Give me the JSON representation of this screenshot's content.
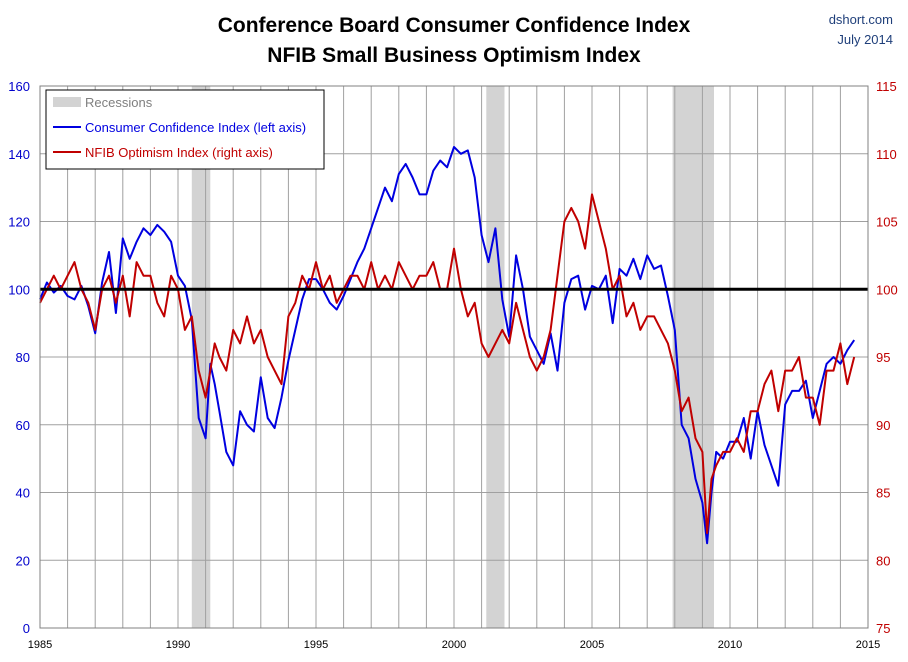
{
  "header": {
    "title_line1": "Conference Board Consumer Confidence Index",
    "title_line2": "NFIB Small Business Optimism Index",
    "source": "dshort.com",
    "date": "July 2014"
  },
  "colors": {
    "consumer": "#0000e0",
    "nfib": "#c00000",
    "recession": "#d3d3d3",
    "grid": "#a0a0a0",
    "reference": "#000000"
  },
  "chart_data": {
    "type": "line",
    "title": "Conference Board Consumer Confidence Index / NFIB Small Business Optimism Index",
    "xlabel": "",
    "xlim": [
      1985,
      2015
    ],
    "x_ticks": [
      1985,
      1990,
      1995,
      2000,
      2005,
      2010,
      2015
    ],
    "left_axis": {
      "label": "Consumer Confidence Index",
      "ylim": [
        0,
        160
      ],
      "ticks": [
        0,
        20,
        40,
        60,
        80,
        100,
        120,
        140,
        160
      ]
    },
    "right_axis": {
      "label": "NFIB Optimism Index",
      "ylim": [
        75,
        115
      ],
      "ticks": [
        75,
        80,
        85,
        90,
        95,
        100,
        105,
        110,
        115
      ]
    },
    "reference_line": {
      "axis": "left",
      "value": 100
    },
    "recessions": [
      {
        "start": 1990.5,
        "end": 1991.17
      },
      {
        "start": 2001.17,
        "end": 2001.83
      },
      {
        "start": 2007.92,
        "end": 2009.42
      }
    ],
    "legend": {
      "position": "top-left",
      "entries": [
        {
          "label": "Recessions",
          "kind": "band"
        },
        {
          "label": "Consumer Confidence Index (left axis)",
          "kind": "line",
          "series": "consumer"
        },
        {
          "label": "NFIB Optimism Index (right axis)",
          "kind": "line",
          "series": "nfib"
        }
      ]
    },
    "series": [
      {
        "name": "Consumer Confidence Index (left axis)",
        "key": "consumer",
        "axis": "left",
        "x": [
          1985,
          1985.25,
          1985.5,
          1985.75,
          1986,
          1986.25,
          1986.5,
          1986.75,
          1987,
          1987.25,
          1987.5,
          1987.75,
          1988,
          1988.25,
          1988.5,
          1988.75,
          1989,
          1989.25,
          1989.5,
          1989.75,
          1990,
          1990.25,
          1990.5,
          1990.75,
          1991,
          1991.17,
          1991.33,
          1991.5,
          1991.75,
          1992,
          1992.25,
          1992.5,
          1992.75,
          1993,
          1993.25,
          1993.5,
          1993.75,
          1994,
          1994.25,
          1994.5,
          1994.75,
          1995,
          1995.25,
          1995.5,
          1995.75,
          1996,
          1996.25,
          1996.5,
          1996.75,
          1997,
          1997.25,
          1997.5,
          1997.75,
          1998,
          1998.25,
          1998.5,
          1998.75,
          1999,
          1999.25,
          1999.5,
          1999.75,
          2000,
          2000.25,
          2000.5,
          2000.75,
          2001,
          2001.25,
          2001.5,
          2001.75,
          2002,
          2002.25,
          2002.5,
          2002.75,
          2003,
          2003.25,
          2003.5,
          2003.75,
          2004,
          2004.25,
          2004.5,
          2004.75,
          2005,
          2005.25,
          2005.5,
          2005.75,
          2006,
          2006.25,
          2006.5,
          2006.75,
          2007,
          2007.25,
          2007.5,
          2007.75,
          2008,
          2008.25,
          2008.5,
          2008.75,
          2009,
          2009.17,
          2009.33,
          2009.5,
          2009.75,
          2010,
          2010.25,
          2010.5,
          2010.75,
          2011,
          2011.25,
          2011.5,
          2011.75,
          2012,
          2012.25,
          2012.5,
          2012.75,
          2013,
          2013.25,
          2013.5,
          2013.75,
          2014,
          2014.25,
          2014.5
        ],
        "values": [
          97,
          102,
          99,
          101,
          98,
          97,
          101,
          95,
          87,
          102,
          111,
          93,
          115,
          109,
          114,
          118,
          116,
          119,
          117,
          114,
          104,
          101,
          91,
          62,
          56,
          78,
          72,
          64,
          52,
          48,
          64,
          60,
          58,
          74,
          62,
          59,
          68,
          79,
          88,
          97,
          103,
          103,
          100,
          96,
          94,
          98,
          103,
          108,
          112,
          118,
          124,
          130,
          126,
          134,
          137,
          133,
          128,
          128,
          135,
          138,
          136,
          142,
          140,
          141,
          133,
          116,
          108,
          118,
          97,
          86,
          110,
          100,
          86,
          82,
          78,
          87,
          76,
          96,
          103,
          104,
          94,
          101,
          100,
          104,
          90,
          106,
          104,
          109,
          103,
          110,
          106,
          107,
          98,
          88,
          60,
          56,
          44,
          37,
          25,
          40,
          52,
          50,
          55,
          55,
          62,
          50,
          64,
          54,
          48,
          42,
          66,
          70,
          70,
          73,
          62,
          70,
          78,
          80,
          78,
          82,
          85
        ]
      },
      {
        "name": "NFIB Optimism Index (right axis)",
        "key": "nfib",
        "axis": "right",
        "x": [
          1985,
          1985.25,
          1985.5,
          1985.75,
          1986,
          1986.25,
          1986.5,
          1986.75,
          1987,
          1987.25,
          1987.5,
          1987.75,
          1988,
          1988.25,
          1988.5,
          1988.75,
          1989,
          1989.25,
          1989.5,
          1989.75,
          1990,
          1990.25,
          1990.5,
          1990.75,
          1991,
          1991.17,
          1991.33,
          1991.5,
          1991.75,
          1992,
          1992.25,
          1992.5,
          1992.75,
          1993,
          1993.25,
          1993.5,
          1993.75,
          1994,
          1994.25,
          1994.5,
          1994.75,
          1995,
          1995.25,
          1995.5,
          1995.75,
          1996,
          1996.25,
          1996.5,
          1996.75,
          1997,
          1997.25,
          1997.5,
          1997.75,
          1998,
          1998.25,
          1998.5,
          1998.75,
          1999,
          1999.25,
          1999.5,
          1999.75,
          2000,
          2000.25,
          2000.5,
          2000.75,
          2001,
          2001.25,
          2001.5,
          2001.75,
          2002,
          2002.25,
          2002.5,
          2002.75,
          2003,
          2003.25,
          2003.5,
          2003.75,
          2004,
          2004.25,
          2004.5,
          2004.75,
          2005,
          2005.25,
          2005.5,
          2005.75,
          2006,
          2006.25,
          2006.5,
          2006.75,
          2007,
          2007.25,
          2007.5,
          2007.75,
          2008,
          2008.25,
          2008.5,
          2008.75,
          2009,
          2009.17,
          2009.33,
          2009.5,
          2009.75,
          2010,
          2010.25,
          2010.5,
          2010.75,
          2011,
          2011.25,
          2011.5,
          2011.75,
          2012,
          2012.25,
          2012.5,
          2012.75,
          2013,
          2013.25,
          2013.5,
          2013.75,
          2014,
          2014.25,
          2014.5
        ],
        "values": [
          99,
          100,
          101,
          100,
          101,
          102,
          100,
          99,
          97,
          100,
          101,
          99,
          101,
          98,
          102,
          101,
          101,
          99,
          98,
          101,
          100,
          97,
          98,
          94,
          92,
          94,
          96,
          95,
          94,
          97,
          96,
          98,
          96,
          97,
          95,
          94,
          93,
          98,
          99,
          101,
          100,
          102,
          100,
          101,
          99,
          100,
          101,
          101,
          100,
          102,
          100,
          101,
          100,
          102,
          101,
          100,
          101,
          101,
          102,
          100,
          100,
          103,
          100,
          98,
          99,
          96,
          95,
          96,
          97,
          96,
          99,
          97,
          95,
          94,
          95,
          97,
          101,
          105,
          106,
          105,
          103,
          107,
          105,
          103,
          100,
          101,
          98,
          99,
          97,
          98,
          98,
          97,
          96,
          94,
          91,
          92,
          89,
          88,
          82,
          86,
          87,
          88,
          88,
          89,
          88,
          91,
          91,
          93,
          94,
          91,
          94,
          94,
          95,
          92,
          92,
          90,
          94,
          94,
          96,
          93,
          95
        ]
      }
    ]
  }
}
